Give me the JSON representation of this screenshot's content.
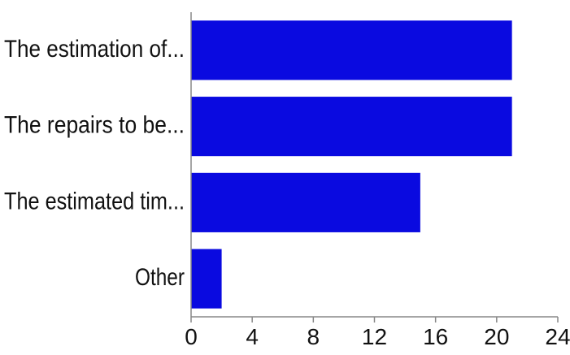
{
  "chart_data": {
    "type": "bar",
    "orientation": "horizontal",
    "categories": [
      "The estimation of...",
      "The repairs to be...",
      "The estimated tim...",
      "Other"
    ],
    "values": [
      21,
      21,
      15,
      2
    ],
    "xlim": [
      0,
      24
    ],
    "xticks": [
      "0",
      "4",
      "8",
      "12",
      "16",
      "20",
      "24"
    ],
    "title": "",
    "xlabel": "",
    "ylabel": "",
    "grid": false,
    "legend": "none",
    "bar_color": "#0A0AE0"
  }
}
